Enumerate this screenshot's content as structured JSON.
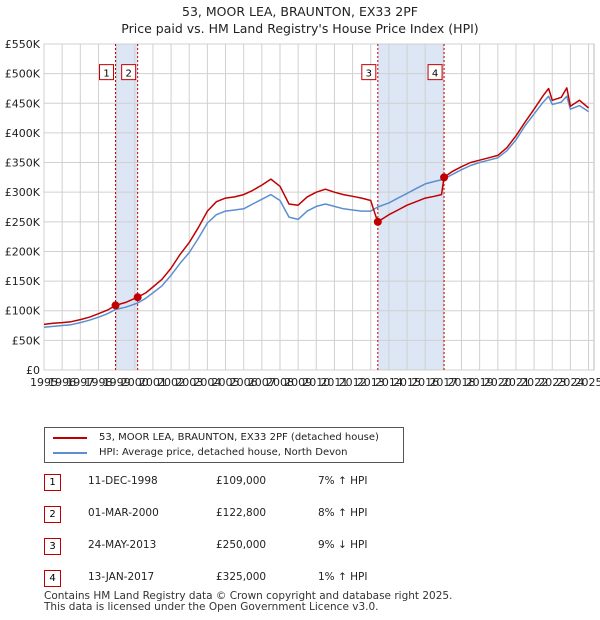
{
  "title_line1": "53, MOOR LEA, BRAUNTON, EX33 2PF",
  "title_line2": "Price paid vs. HM Land Registry's House Price Index (HPI)",
  "colors": {
    "property": "#c00000",
    "hpi": "#5b8fd0",
    "shade": "#dde6f5",
    "grid": "#d0d0d0",
    "marker_line": "#c00000"
  },
  "chart_data": {
    "type": "line",
    "title": "53, MOOR LEA, BRAUNTON, EX33 2PF — Price paid vs. HM Land Registry's House Price Index (HPI)",
    "xlim": [
      1995,
      2025.3
    ],
    "ylim": [
      0,
      550000
    ],
    "x_ticks": [
      "1995",
      "1996",
      "1997",
      "1998",
      "1999",
      "2000",
      "2001",
      "2002",
      "2003",
      "2004",
      "2005",
      "2006",
      "2007",
      "2008",
      "2009",
      "2010",
      "2011",
      "2012",
      "2013",
      "2014",
      "2015",
      "2016",
      "2017",
      "2018",
      "2019",
      "2020",
      "2021",
      "2022",
      "2023",
      "2024",
      "2025"
    ],
    "y_ticks": [
      {
        "value": 0,
        "label": "£0"
      },
      {
        "value": 50000,
        "label": "£50K"
      },
      {
        "value": 100000,
        "label": "£100K"
      },
      {
        "value": 150000,
        "label": "£150K"
      },
      {
        "value": 200000,
        "label": "£200K"
      },
      {
        "value": 250000,
        "label": "£250K"
      },
      {
        "value": 300000,
        "label": "£300K"
      },
      {
        "value": 350000,
        "label": "£350K"
      },
      {
        "value": 400000,
        "label": "£400K"
      },
      {
        "value": 450000,
        "label": "£450K"
      },
      {
        "value": 500000,
        "label": "£500K"
      },
      {
        "value": 550000,
        "label": "£550K"
      }
    ],
    "grid": true,
    "shaded_ranges": [
      [
        1998.94,
        2000.16
      ],
      [
        2013.39,
        2017.04
      ]
    ],
    "series": [
      {
        "name": "53, MOOR LEA, BRAUNTON, EX33 2PF (detached house)",
        "color": "#c00000",
        "points": [
          [
            1995.0,
            77000
          ],
          [
            1995.5,
            79000
          ],
          [
            1996.0,
            80000
          ],
          [
            1996.5,
            81500
          ],
          [
            1997.0,
            85000
          ],
          [
            1997.5,
            89000
          ],
          [
            1998.0,
            95000
          ],
          [
            1998.5,
            101000
          ],
          [
            1998.94,
            109000
          ],
          [
            1999.5,
            114000
          ],
          [
            2000.16,
            122800
          ],
          [
            2000.6,
            130000
          ],
          [
            2001.0,
            140000
          ],
          [
            2001.5,
            153000
          ],
          [
            2002.0,
            172000
          ],
          [
            2002.5,
            195000
          ],
          [
            2003.0,
            215000
          ],
          [
            2003.5,
            240000
          ],
          [
            2004.0,
            268000
          ],
          [
            2004.5,
            284000
          ],
          [
            2005.0,
            290000
          ],
          [
            2005.5,
            292000
          ],
          [
            2006.0,
            296000
          ],
          [
            2006.5,
            303000
          ],
          [
            2007.0,
            312000
          ],
          [
            2007.5,
            322000
          ],
          [
            2008.0,
            310000
          ],
          [
            2008.5,
            280000
          ],
          [
            2009.0,
            278000
          ],
          [
            2009.5,
            292000
          ],
          [
            2010.0,
            300000
          ],
          [
            2010.5,
            305000
          ],
          [
            2011.0,
            300000
          ],
          [
            2011.5,
            296000
          ],
          [
            2012.0,
            293000
          ],
          [
            2012.5,
            290000
          ],
          [
            2013.0,
            286000
          ],
          [
            2013.25,
            262000
          ],
          [
            2013.39,
            250000
          ],
          [
            2013.7,
            256000
          ],
          [
            2014.0,
            262000
          ],
          [
            2014.5,
            270000
          ],
          [
            2015.0,
            278000
          ],
          [
            2015.5,
            284000
          ],
          [
            2016.0,
            290000
          ],
          [
            2016.5,
            293000
          ],
          [
            2016.9,
            296000
          ],
          [
            2017.04,
            325000
          ],
          [
            2017.5,
            335000
          ],
          [
            2018.0,
            343000
          ],
          [
            2018.5,
            350000
          ],
          [
            2019.0,
            354000
          ],
          [
            2019.5,
            358000
          ],
          [
            2020.0,
            362000
          ],
          [
            2020.5,
            375000
          ],
          [
            2021.0,
            395000
          ],
          [
            2021.5,
            418000
          ],
          [
            2022.0,
            440000
          ],
          [
            2022.5,
            463000
          ],
          [
            2022.8,
            475000
          ],
          [
            2023.0,
            455000
          ],
          [
            2023.5,
            460000
          ],
          [
            2023.8,
            476000
          ],
          [
            2024.0,
            445000
          ],
          [
            2024.5,
            455000
          ],
          [
            2025.0,
            442000
          ]
        ]
      },
      {
        "name": "HPI: Average price, detached house, North Devon",
        "color": "#5b8fd0",
        "points": [
          [
            1995.0,
            72000
          ],
          [
            1995.5,
            73500
          ],
          [
            1996.0,
            75000
          ],
          [
            1996.5,
            76500
          ],
          [
            1997.0,
            80000
          ],
          [
            1997.5,
            84000
          ],
          [
            1998.0,
            89000
          ],
          [
            1998.5,
            95000
          ],
          [
            1998.94,
            102000
          ],
          [
            1999.5,
            106000
          ],
          [
            2000.16,
            113000
          ],
          [
            2000.6,
            121000
          ],
          [
            2001.0,
            130000
          ],
          [
            2001.5,
            142000
          ],
          [
            2002.0,
            160000
          ],
          [
            2002.5,
            180000
          ],
          [
            2003.0,
            198000
          ],
          [
            2003.5,
            222000
          ],
          [
            2004.0,
            248000
          ],
          [
            2004.5,
            262000
          ],
          [
            2005.0,
            268000
          ],
          [
            2005.5,
            270000
          ],
          [
            2006.0,
            272000
          ],
          [
            2006.5,
            280000
          ],
          [
            2007.0,
            288000
          ],
          [
            2007.5,
            296000
          ],
          [
            2008.0,
            286000
          ],
          [
            2008.5,
            258000
          ],
          [
            2009.0,
            254000
          ],
          [
            2009.5,
            268000
          ],
          [
            2010.0,
            276000
          ],
          [
            2010.5,
            280000
          ],
          [
            2011.0,
            276000
          ],
          [
            2011.5,
            272000
          ],
          [
            2012.0,
            270000
          ],
          [
            2012.5,
            268000
          ],
          [
            2013.0,
            268000
          ],
          [
            2013.39,
            275000
          ],
          [
            2014.0,
            282000
          ],
          [
            2014.5,
            290000
          ],
          [
            2015.0,
            298000
          ],
          [
            2015.5,
            306000
          ],
          [
            2016.0,
            314000
          ],
          [
            2016.5,
            318000
          ],
          [
            2017.04,
            322000
          ],
          [
            2017.5,
            330000
          ],
          [
            2018.0,
            338000
          ],
          [
            2018.5,
            345000
          ],
          [
            2019.0,
            350000
          ],
          [
            2019.5,
            354000
          ],
          [
            2020.0,
            358000
          ],
          [
            2020.5,
            370000
          ],
          [
            2021.0,
            388000
          ],
          [
            2021.5,
            412000
          ],
          [
            2022.0,
            432000
          ],
          [
            2022.5,
            452000
          ],
          [
            2022.8,
            462000
          ],
          [
            2023.0,
            448000
          ],
          [
            2023.5,
            452000
          ],
          [
            2023.8,
            462000
          ],
          [
            2024.0,
            440000
          ],
          [
            2024.5,
            446000
          ],
          [
            2025.0,
            436000
          ]
        ]
      }
    ],
    "sales": [
      {
        "label": "1",
        "x": 1998.94,
        "value": 109000
      },
      {
        "label": "2",
        "x": 2000.16,
        "value": 122800
      },
      {
        "label": "3",
        "x": 2013.39,
        "value": 250000
      },
      {
        "label": "4",
        "x": 2017.04,
        "value": 325000
      }
    ]
  },
  "legend": {
    "property": "53, MOOR LEA, BRAUNTON, EX33 2PF (detached house)",
    "hpi": "HPI: Average price, detached house, North Devon"
  },
  "sales_table": [
    {
      "num": "1",
      "date": "11-DEC-1998",
      "price": "£109,000",
      "hpi": "7% ↑ HPI"
    },
    {
      "num": "2",
      "date": "01-MAR-2000",
      "price": "£122,800",
      "hpi": "8% ↑ HPI"
    },
    {
      "num": "3",
      "date": "24-MAY-2013",
      "price": "£250,000",
      "hpi": "9% ↓ HPI"
    },
    {
      "num": "4",
      "date": "13-JAN-2017",
      "price": "£325,000",
      "hpi": "1% ↑ HPI"
    }
  ],
  "footer": {
    "line1": "Contains HM Land Registry data © Crown copyright and database right 2025.",
    "line2": "This data is licensed under the Open Government Licence v3.0."
  }
}
